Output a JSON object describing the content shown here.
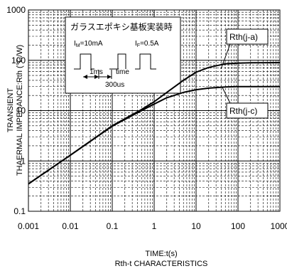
{
  "chart_data": {
    "type": "line",
    "title": "Rth-t CHARACTERISTICS",
    "xlabel": "TIME:t(s)",
    "ylabel_line1": "TRANSIENT",
    "ylabel_line2": "THAERMAL IMPEDANCE:Rth (°C/W)",
    "x_scale": "log",
    "y_scale": "log",
    "xlim": [
      0.001,
      1000
    ],
    "ylim": [
      0.1,
      1000
    ],
    "grid": true,
    "x_ticks": [
      "0.001",
      "0.01",
      "0.1",
      "1",
      "10",
      "100",
      "1000"
    ],
    "y_ticks": [
      "0.1",
      "1",
      "10",
      "100",
      "1000"
    ],
    "series": [
      {
        "name": "Rth(j-a)",
        "x": [
          0.001,
          0.01,
          0.1,
          0.5,
          1,
          2,
          5,
          10,
          20,
          50,
          100,
          200,
          1000
        ],
        "y": [
          0.35,
          1.3,
          5.0,
          10.5,
          15,
          23,
          40,
          58,
          72,
          85,
          88,
          89,
          90
        ]
      },
      {
        "name": "Rth(j-c)",
        "x": [
          0.001,
          0.01,
          0.1,
          0.5,
          1,
          2,
          5,
          10,
          20,
          50,
          100,
          200,
          1000
        ],
        "y": [
          0.35,
          1.3,
          4.9,
          10,
          13.5,
          18,
          23,
          26,
          28,
          29.5,
          30,
          30,
          30
        ]
      }
    ],
    "inset": {
      "title": "ガラスエポキシ基板実装時",
      "im_label": "I",
      "im_sub": "M",
      "im_value": "=10mA",
      "if_label": "I",
      "if_sub": "F",
      "if_value": "=0.5A",
      "label_1ms": "1ms",
      "label_time": "time",
      "label_300us": "300us"
    }
  }
}
